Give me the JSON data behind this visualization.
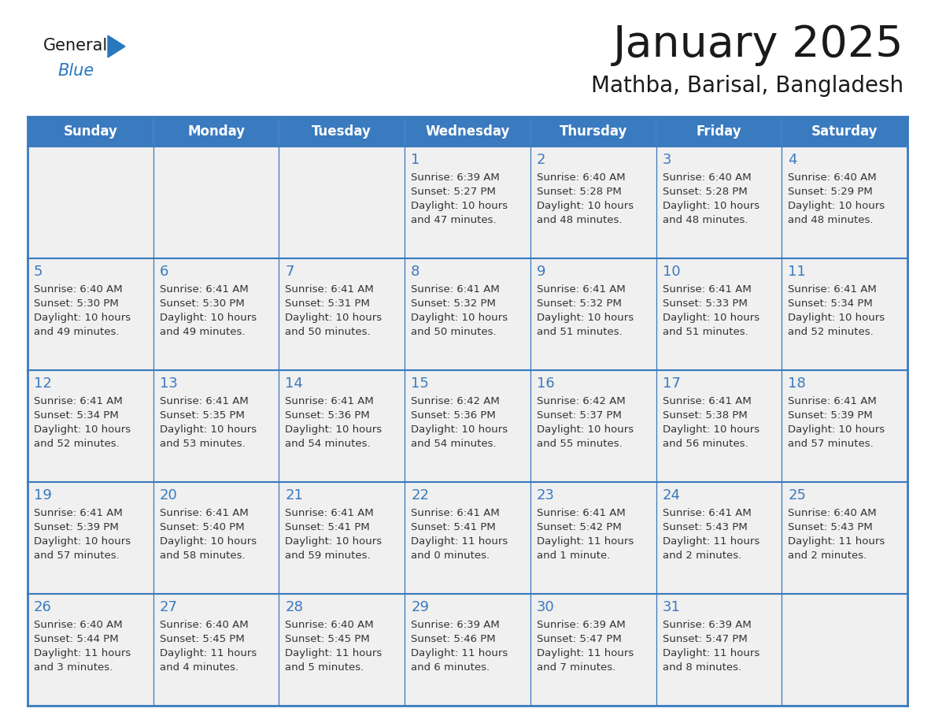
{
  "title": "January 2025",
  "subtitle": "Mathba, Barisal, Bangladesh",
  "days_of_week": [
    "Sunday",
    "Monday",
    "Tuesday",
    "Wednesday",
    "Thursday",
    "Friday",
    "Saturday"
  ],
  "header_bg_color": "#3a7abf",
  "header_text_color": "#ffffff",
  "cell_bg_color": "#f0f0f0",
  "border_color": "#3a7abf",
  "title_color": "#1a1a1a",
  "subtitle_color": "#1a1a1a",
  "day_number_color": "#3a7abf",
  "cell_text_color": "#333333",
  "logo_text_color": "#1a1a1a",
  "logo_blue_color": "#2878be",
  "calendar_data": [
    [
      null,
      null,
      null,
      {
        "day": 1,
        "sunrise": "6:39 AM",
        "sunset": "5:27 PM",
        "daylight": "10 hours",
        "daylight2": "and 47 minutes."
      },
      {
        "day": 2,
        "sunrise": "6:40 AM",
        "sunset": "5:28 PM",
        "daylight": "10 hours",
        "daylight2": "and 48 minutes."
      },
      {
        "day": 3,
        "sunrise": "6:40 AM",
        "sunset": "5:28 PM",
        "daylight": "10 hours",
        "daylight2": "and 48 minutes."
      },
      {
        "day": 4,
        "sunrise": "6:40 AM",
        "sunset": "5:29 PM",
        "daylight": "10 hours",
        "daylight2": "and 48 minutes."
      }
    ],
    [
      {
        "day": 5,
        "sunrise": "6:40 AM",
        "sunset": "5:30 PM",
        "daylight": "10 hours",
        "daylight2": "and 49 minutes."
      },
      {
        "day": 6,
        "sunrise": "6:41 AM",
        "sunset": "5:30 PM",
        "daylight": "10 hours",
        "daylight2": "and 49 minutes."
      },
      {
        "day": 7,
        "sunrise": "6:41 AM",
        "sunset": "5:31 PM",
        "daylight": "10 hours",
        "daylight2": "and 50 minutes."
      },
      {
        "day": 8,
        "sunrise": "6:41 AM",
        "sunset": "5:32 PM",
        "daylight": "10 hours",
        "daylight2": "and 50 minutes."
      },
      {
        "day": 9,
        "sunrise": "6:41 AM",
        "sunset": "5:32 PM",
        "daylight": "10 hours",
        "daylight2": "and 51 minutes."
      },
      {
        "day": 10,
        "sunrise": "6:41 AM",
        "sunset": "5:33 PM",
        "daylight": "10 hours",
        "daylight2": "and 51 minutes."
      },
      {
        "day": 11,
        "sunrise": "6:41 AM",
        "sunset": "5:34 PM",
        "daylight": "10 hours",
        "daylight2": "and 52 minutes."
      }
    ],
    [
      {
        "day": 12,
        "sunrise": "6:41 AM",
        "sunset": "5:34 PM",
        "daylight": "10 hours",
        "daylight2": "and 52 minutes."
      },
      {
        "day": 13,
        "sunrise": "6:41 AM",
        "sunset": "5:35 PM",
        "daylight": "10 hours",
        "daylight2": "and 53 minutes."
      },
      {
        "day": 14,
        "sunrise": "6:41 AM",
        "sunset": "5:36 PM",
        "daylight": "10 hours",
        "daylight2": "and 54 minutes."
      },
      {
        "day": 15,
        "sunrise": "6:42 AM",
        "sunset": "5:36 PM",
        "daylight": "10 hours",
        "daylight2": "and 54 minutes."
      },
      {
        "day": 16,
        "sunrise": "6:42 AM",
        "sunset": "5:37 PM",
        "daylight": "10 hours",
        "daylight2": "and 55 minutes."
      },
      {
        "day": 17,
        "sunrise": "6:41 AM",
        "sunset": "5:38 PM",
        "daylight": "10 hours",
        "daylight2": "and 56 minutes."
      },
      {
        "day": 18,
        "sunrise": "6:41 AM",
        "sunset": "5:39 PM",
        "daylight": "10 hours",
        "daylight2": "and 57 minutes."
      }
    ],
    [
      {
        "day": 19,
        "sunrise": "6:41 AM",
        "sunset": "5:39 PM",
        "daylight": "10 hours",
        "daylight2": "and 57 minutes."
      },
      {
        "day": 20,
        "sunrise": "6:41 AM",
        "sunset": "5:40 PM",
        "daylight": "10 hours",
        "daylight2": "and 58 minutes."
      },
      {
        "day": 21,
        "sunrise": "6:41 AM",
        "sunset": "5:41 PM",
        "daylight": "10 hours",
        "daylight2": "and 59 minutes."
      },
      {
        "day": 22,
        "sunrise": "6:41 AM",
        "sunset": "5:41 PM",
        "daylight": "11 hours",
        "daylight2": "and 0 minutes."
      },
      {
        "day": 23,
        "sunrise": "6:41 AM",
        "sunset": "5:42 PM",
        "daylight": "11 hours",
        "daylight2": "and 1 minute."
      },
      {
        "day": 24,
        "sunrise": "6:41 AM",
        "sunset": "5:43 PM",
        "daylight": "11 hours",
        "daylight2": "and 2 minutes."
      },
      {
        "day": 25,
        "sunrise": "6:40 AM",
        "sunset": "5:43 PM",
        "daylight": "11 hours",
        "daylight2": "and 2 minutes."
      }
    ],
    [
      {
        "day": 26,
        "sunrise": "6:40 AM",
        "sunset": "5:44 PM",
        "daylight": "11 hours",
        "daylight2": "and 3 minutes."
      },
      {
        "day": 27,
        "sunrise": "6:40 AM",
        "sunset": "5:45 PM",
        "daylight": "11 hours",
        "daylight2": "and 4 minutes."
      },
      {
        "day": 28,
        "sunrise": "6:40 AM",
        "sunset": "5:45 PM",
        "daylight": "11 hours",
        "daylight2": "and 5 minutes."
      },
      {
        "day": 29,
        "sunrise": "6:39 AM",
        "sunset": "5:46 PM",
        "daylight": "11 hours",
        "daylight2": "and 6 minutes."
      },
      {
        "day": 30,
        "sunrise": "6:39 AM",
        "sunset": "5:47 PM",
        "daylight": "11 hours",
        "daylight2": "and 7 minutes."
      },
      {
        "day": 31,
        "sunrise": "6:39 AM",
        "sunset": "5:47 PM",
        "daylight": "11 hours",
        "daylight2": "and 8 minutes."
      },
      null
    ]
  ]
}
